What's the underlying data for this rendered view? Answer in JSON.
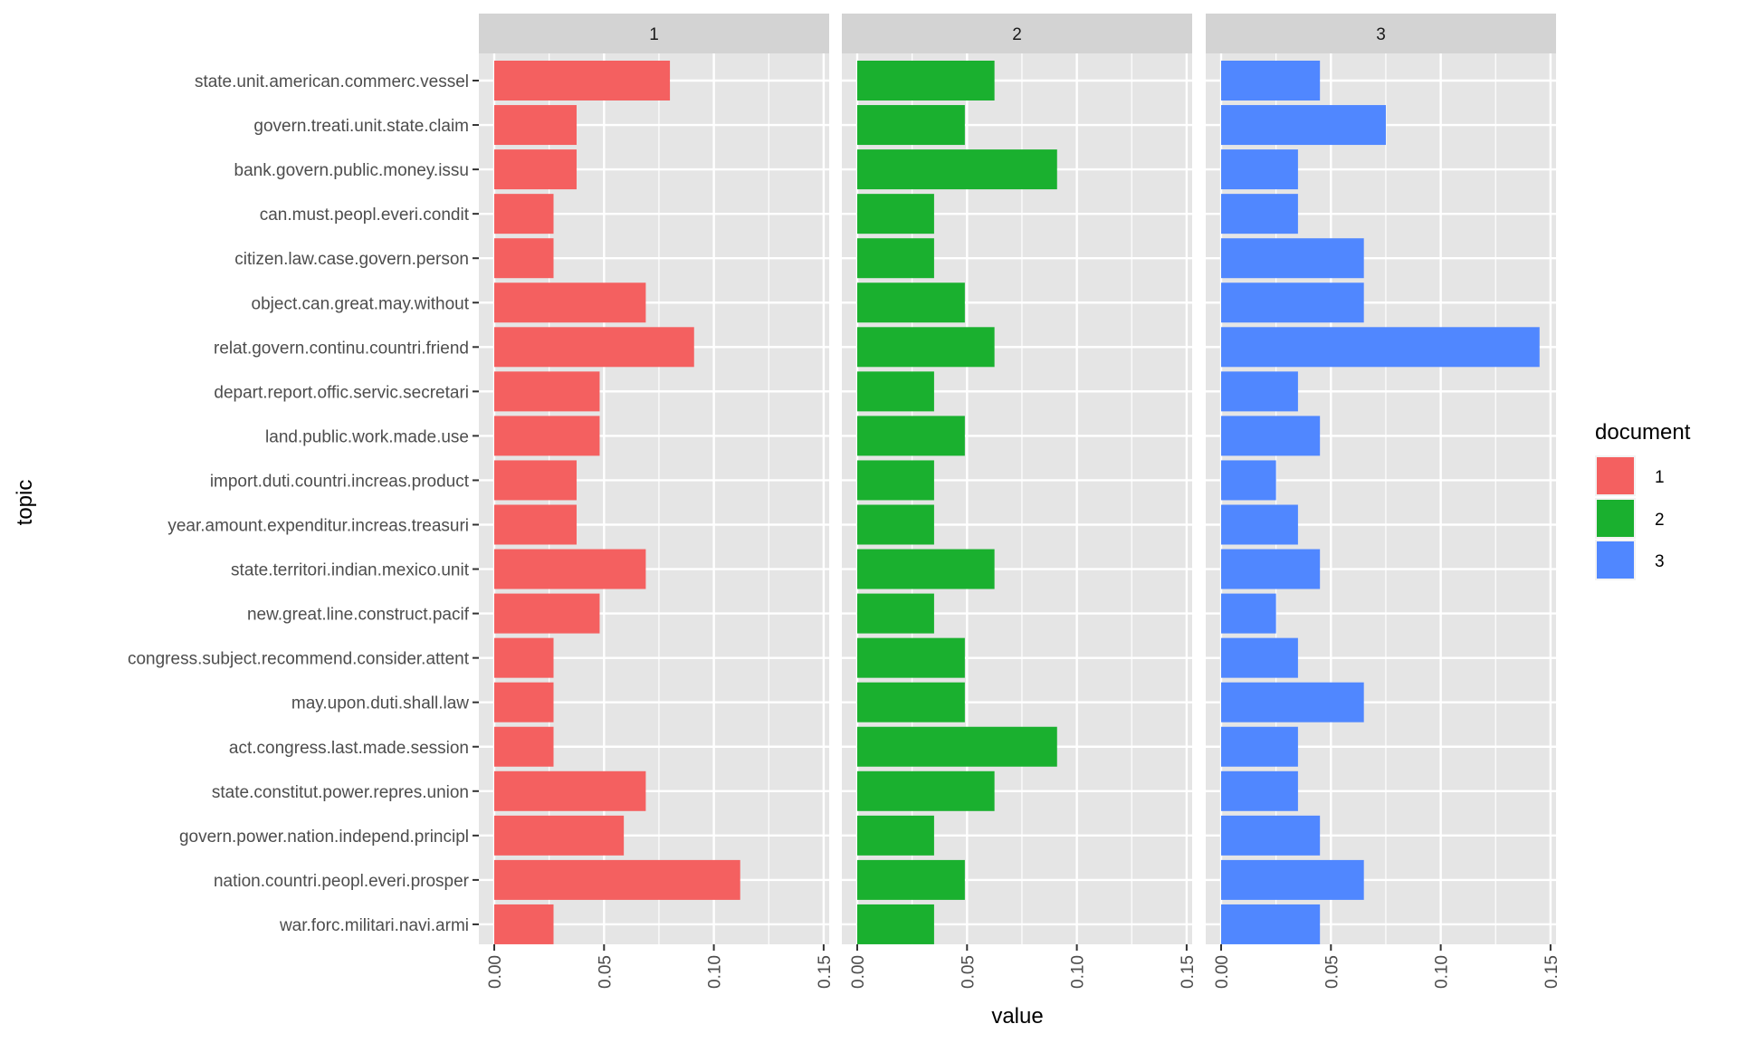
{
  "chart_data": {
    "type": "bar",
    "orientation": "horizontal",
    "faceted_by": "document",
    "title": "",
    "xlabel": "value",
    "ylabel": "topic",
    "xlim": [
      0,
      0.15
    ],
    "x_ticks": [
      "0.00",
      "0.05",
      "0.10",
      "0.15"
    ],
    "x_tick_values": [
      0,
      0.05,
      0.1,
      0.15
    ],
    "grid": true,
    "legend": {
      "title": "document",
      "position": "right",
      "entries": [
        "1",
        "2",
        "3"
      ]
    },
    "categories": [
      "state.unit.american.commerc.vessel",
      "govern.treati.unit.state.claim",
      "bank.govern.public.money.issu",
      "can.must.peopl.everi.condit",
      "citizen.law.case.govern.person",
      "object.can.great.may.without",
      "relat.govern.continu.countri.friend",
      "depart.report.offic.servic.secretari",
      "land.public.work.made.use",
      "import.duti.countri.increas.product",
      "year.amount.expenditur.increas.treasuri",
      "state.territori.indian.mexico.unit",
      "new.great.line.construct.pacif",
      "congress.subject.recommend.consider.attent",
      "may.upon.duti.shall.law",
      "act.congress.last.made.session",
      "state.constitut.power.repres.union",
      "govern.power.nation.independ.principl",
      "nation.countri.peopl.everi.prosper",
      "war.forc.militari.navi.armi"
    ],
    "series": [
      {
        "name": "1",
        "color": "#F8766D",
        "values": [
          0.08,
          0.0375,
          0.0375,
          0.027,
          0.027,
          0.069,
          0.091,
          0.048,
          0.048,
          0.0375,
          0.0375,
          0.069,
          0.048,
          0.027,
          0.027,
          0.027,
          0.069,
          0.059,
          0.112,
          0.027
        ]
      },
      {
        "name": "2",
        "color": "#00BA38",
        "values": [
          0.0625,
          0.049,
          0.091,
          0.035,
          0.035,
          0.049,
          0.0625,
          0.035,
          0.049,
          0.035,
          0.035,
          0.0625,
          0.035,
          0.049,
          0.049,
          0.091,
          0.0625,
          0.035,
          0.049,
          0.035
        ]
      },
      {
        "name": "3",
        "color": "#619CFF",
        "values": [
          0.045,
          0.075,
          0.035,
          0.035,
          0.065,
          0.065,
          0.145,
          0.035,
          0.045,
          0.025,
          0.035,
          0.045,
          0.025,
          0.035,
          0.065,
          0.035,
          0.035,
          0.045,
          0.065,
          0.045
        ]
      }
    ]
  },
  "colors": {
    "panel_bg": "#E5E5E5",
    "strip_bg": "#D3D3D3",
    "grid": "#FFFFFF",
    "bar_1": "#F46060",
    "bar_2": "#1AB02F",
    "bar_3": "#5087FF"
  }
}
